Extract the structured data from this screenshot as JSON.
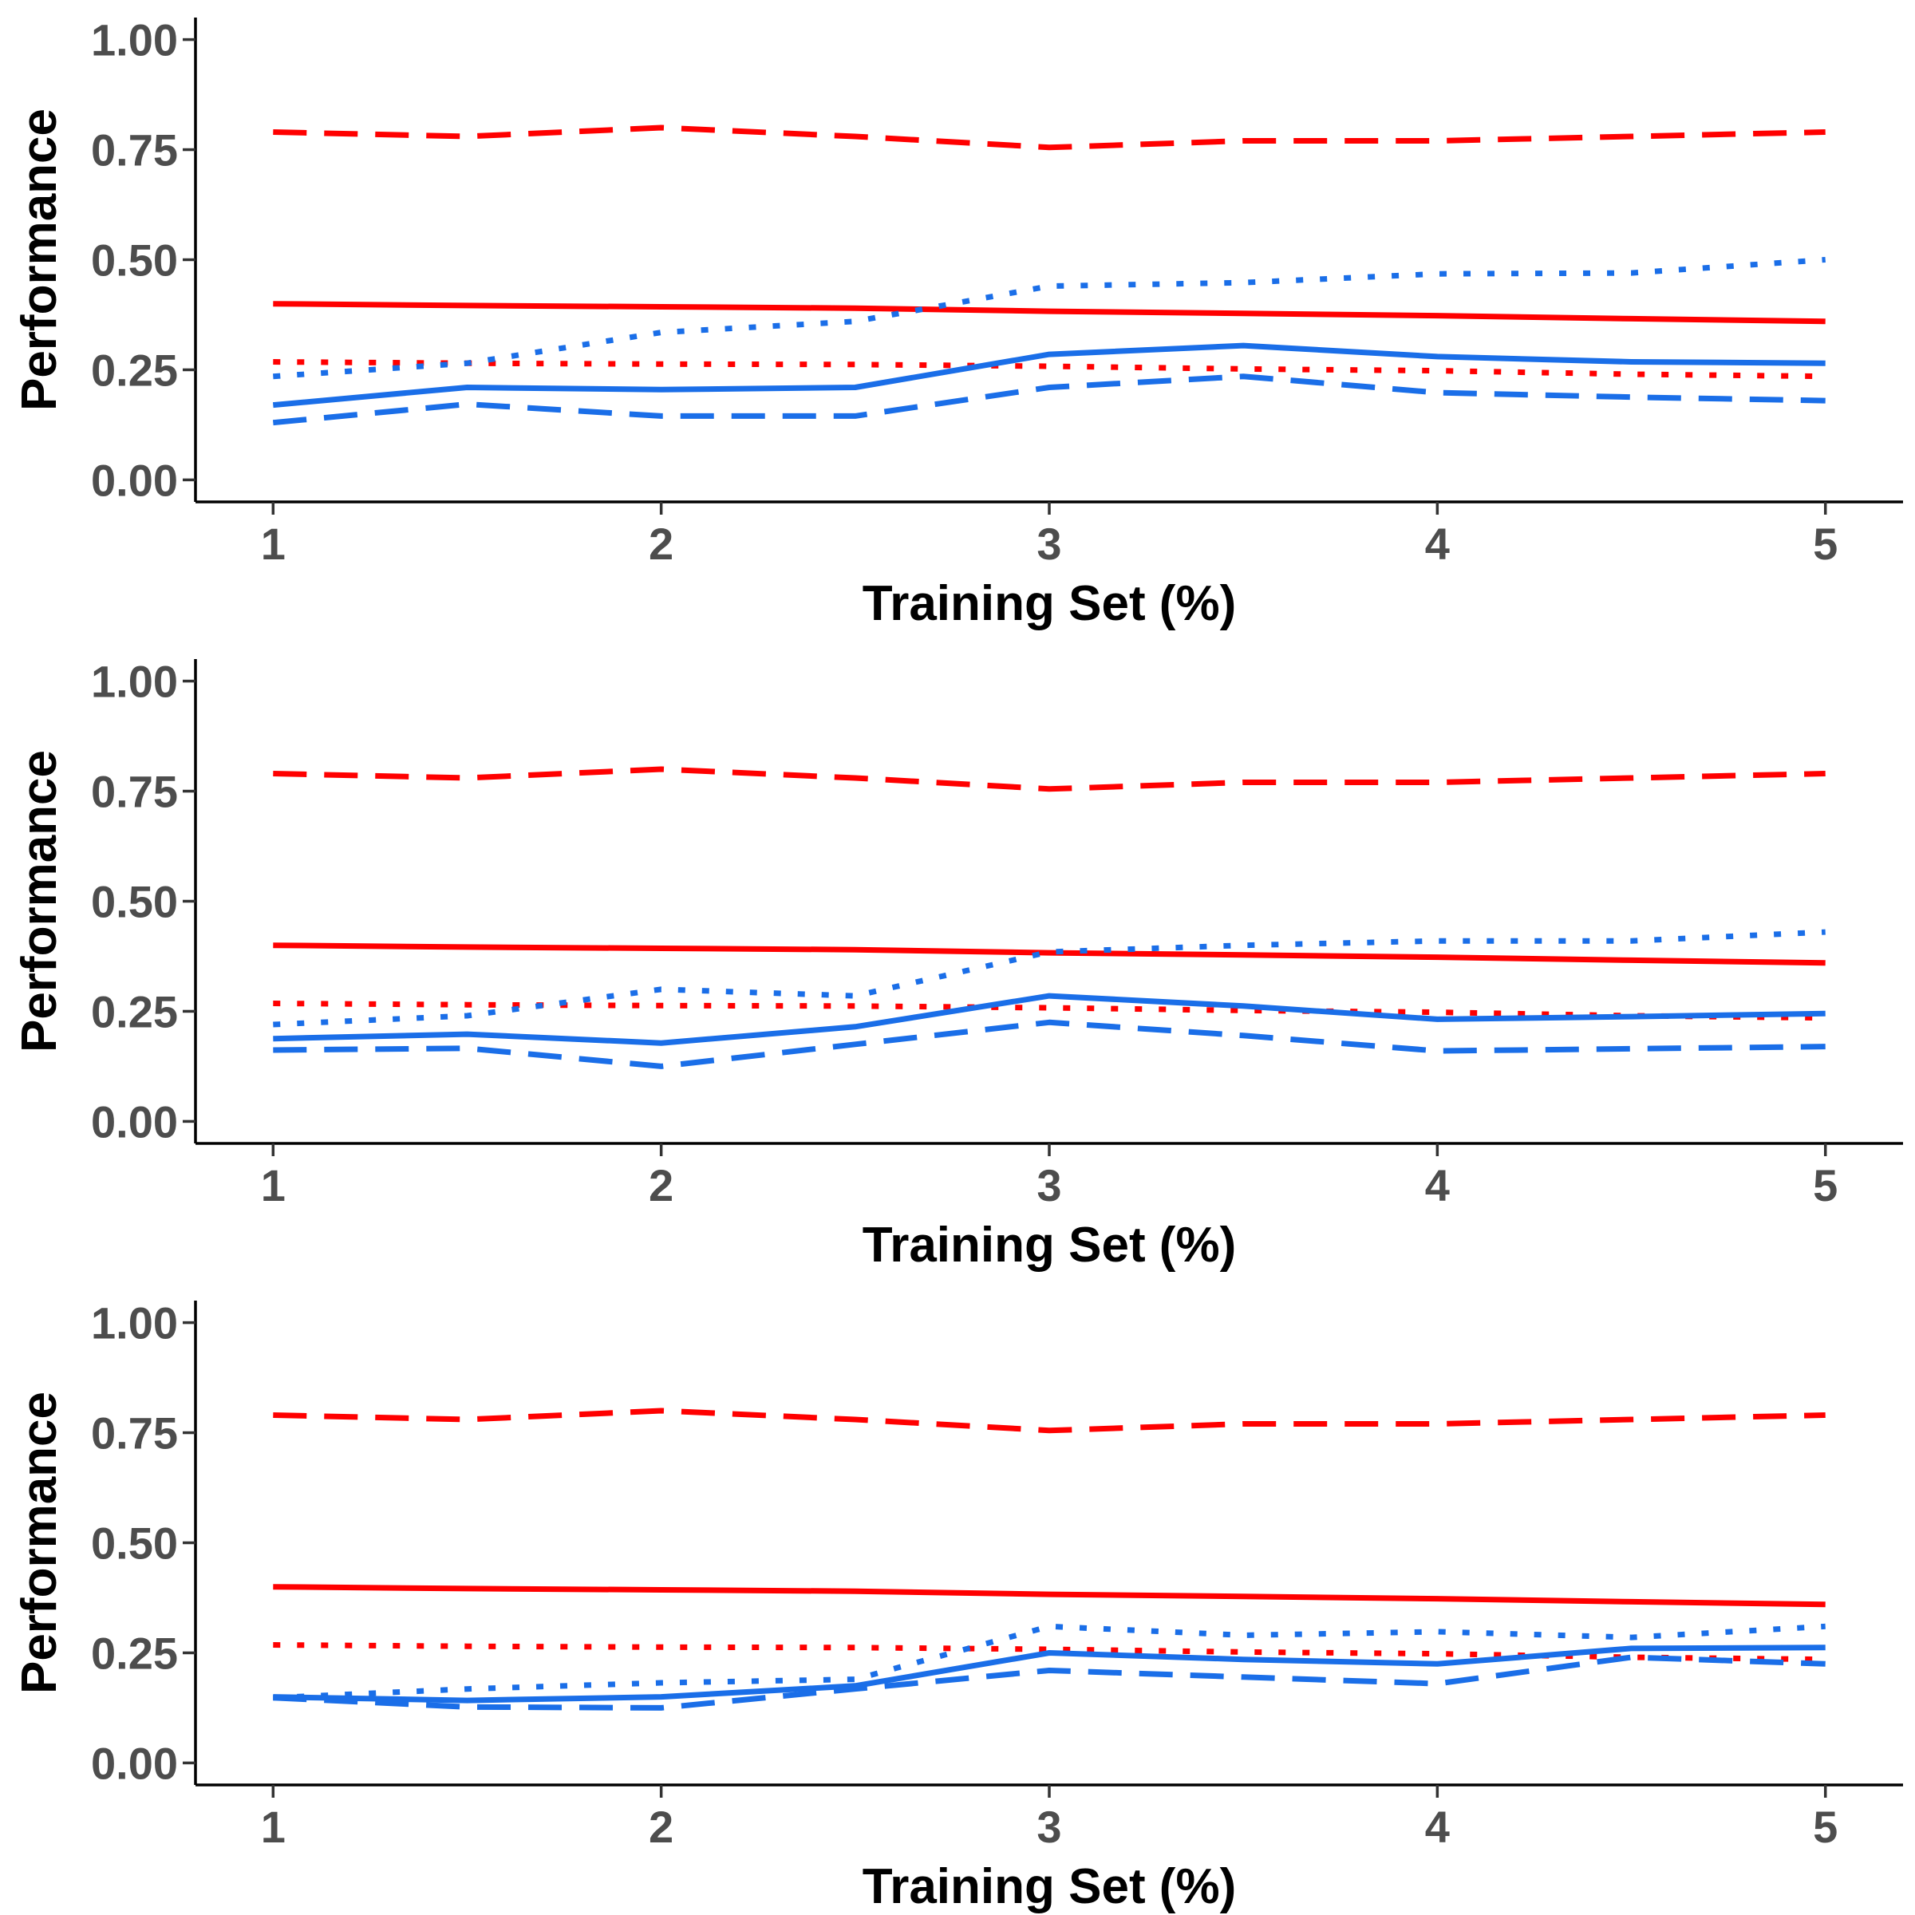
{
  "chart_data": [
    {
      "type": "line",
      "xlabel": "Training Set (%)",
      "ylabel": "Performance",
      "xlim": [
        0.8,
        5.2
      ],
      "ylim": [
        -0.05,
        1.05
      ],
      "xticks": [
        "1",
        "2",
        "3",
        "4",
        "5"
      ],
      "yticks": [
        "0.00",
        "0.25",
        "0.50",
        "0.75",
        "1.00"
      ],
      "x": [
        1,
        1.5,
        2,
        2.5,
        3,
        3.5,
        4,
        4.5,
        5
      ],
      "grid": false,
      "series": [
        {
          "color": "#ff0000",
          "linestyle": "solid",
          "values": [
            0.4,
            0.396,
            0.393,
            0.39,
            0.383,
            0.378,
            0.373,
            0.366,
            0.36
          ]
        },
        {
          "color": "#ff0000",
          "linestyle": "dashed",
          "values": [
            0.79,
            0.78,
            0.8,
            0.78,
            0.755,
            0.77,
            0.77,
            0.78,
            0.79
          ]
        },
        {
          "color": "#ff0000",
          "linestyle": "dotted",
          "values": [
            0.268,
            0.265,
            0.263,
            0.262,
            0.258,
            0.252,
            0.248,
            0.24,
            0.235
          ]
        },
        {
          "color": "#1a6ee8",
          "linestyle": "solid",
          "values": [
            0.17,
            0.21,
            0.205,
            0.21,
            0.285,
            0.305,
            0.28,
            0.268,
            0.265
          ]
        },
        {
          "color": "#1a6ee8",
          "linestyle": "dashed",
          "values": [
            0.13,
            0.172,
            0.145,
            0.145,
            0.21,
            0.235,
            0.198,
            0.188,
            0.18
          ]
        },
        {
          "color": "#1a6ee8",
          "linestyle": "dotted",
          "values": [
            0.235,
            0.265,
            0.335,
            0.36,
            0.44,
            0.448,
            0.468,
            0.47,
            0.5
          ]
        }
      ]
    },
    {
      "type": "line",
      "xlabel": "Training Set (%)",
      "ylabel": "Performance",
      "xlim": [
        0.8,
        5.2
      ],
      "ylim": [
        -0.05,
        1.05
      ],
      "xticks": [
        "1",
        "2",
        "3",
        "4",
        "5"
      ],
      "yticks": [
        "0.00",
        "0.25",
        "0.50",
        "0.75",
        "1.00"
      ],
      "x": [
        1,
        1.5,
        2,
        2.5,
        3,
        3.5,
        4,
        4.5,
        5
      ],
      "grid": false,
      "series": [
        {
          "color": "#ff0000",
          "linestyle": "solid",
          "values": [
            0.4,
            0.396,
            0.393,
            0.39,
            0.383,
            0.378,
            0.373,
            0.366,
            0.36
          ]
        },
        {
          "color": "#ff0000",
          "linestyle": "dashed",
          "values": [
            0.79,
            0.78,
            0.8,
            0.78,
            0.755,
            0.77,
            0.77,
            0.78,
            0.79
          ]
        },
        {
          "color": "#ff0000",
          "linestyle": "dotted",
          "values": [
            0.268,
            0.265,
            0.263,
            0.262,
            0.258,
            0.252,
            0.248,
            0.24,
            0.235
          ]
        },
        {
          "color": "#1a6ee8",
          "linestyle": "solid",
          "values": [
            0.188,
            0.198,
            0.178,
            0.215,
            0.285,
            0.262,
            0.232,
            0.238,
            0.245
          ]
        },
        {
          "color": "#1a6ee8",
          "linestyle": "dashed",
          "values": [
            0.162,
            0.166,
            0.125,
            0.175,
            0.225,
            0.195,
            0.16,
            0.165,
            0.17
          ]
        },
        {
          "color": "#1a6ee8",
          "linestyle": "dotted",
          "values": [
            0.22,
            0.24,
            0.3,
            0.285,
            0.385,
            0.4,
            0.41,
            0.41,
            0.43
          ]
        }
      ]
    },
    {
      "type": "line",
      "xlabel": "Training Set (%)",
      "ylabel": "Performance",
      "xlim": [
        0.8,
        5.2
      ],
      "ylim": [
        -0.05,
        1.05
      ],
      "xticks": [
        "1",
        "2",
        "3",
        "4",
        "5"
      ],
      "yticks": [
        "0.00",
        "0.25",
        "0.50",
        "0.75",
        "1.00"
      ],
      "x": [
        1,
        1.5,
        2,
        2.5,
        3,
        3.5,
        4,
        4.5,
        5
      ],
      "grid": false,
      "series": [
        {
          "color": "#ff0000",
          "linestyle": "solid",
          "values": [
            0.4,
            0.396,
            0.393,
            0.39,
            0.383,
            0.378,
            0.373,
            0.366,
            0.36
          ]
        },
        {
          "color": "#ff0000",
          "linestyle": "dashed",
          "values": [
            0.79,
            0.78,
            0.8,
            0.78,
            0.755,
            0.77,
            0.77,
            0.78,
            0.79
          ]
        },
        {
          "color": "#ff0000",
          "linestyle": "dotted",
          "values": [
            0.268,
            0.265,
            0.263,
            0.262,
            0.258,
            0.252,
            0.248,
            0.24,
            0.235
          ]
        },
        {
          "color": "#1a6ee8",
          "linestyle": "solid",
          "values": [
            0.15,
            0.142,
            0.15,
            0.175,
            0.25,
            0.235,
            0.225,
            0.26,
            0.262
          ]
        },
        {
          "color": "#1a6ee8",
          "linestyle": "dashed",
          "values": [
            0.148,
            0.127,
            0.125,
            0.168,
            0.21,
            0.195,
            0.18,
            0.24,
            0.225
          ]
        },
        {
          "color": "#1a6ee8",
          "linestyle": "dotted",
          "values": [
            0.148,
            0.168,
            0.182,
            0.19,
            0.31,
            0.29,
            0.298,
            0.285,
            0.31
          ]
        }
      ]
    }
  ]
}
